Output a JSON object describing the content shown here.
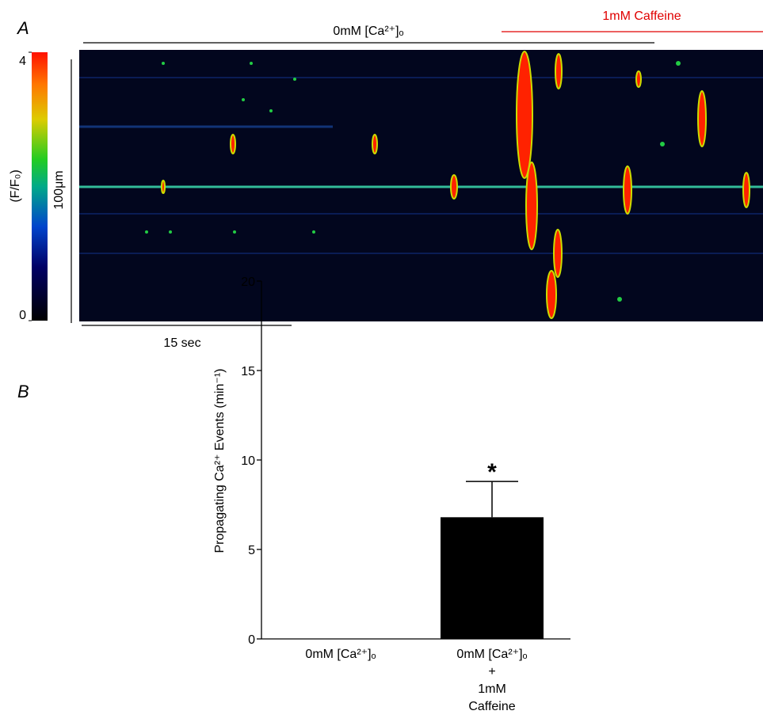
{
  "panel_a": {
    "label": "A",
    "condition": "0mM [Ca²⁺]ₒ",
    "treatment": "1mM Caffeine",
    "colorbar": {
      "label": "(F/F₀)",
      "lim": [
        0,
        4
      ],
      "ticks": [
        0,
        4
      ]
    },
    "space_bar": "100μm",
    "time_bar": "15 sec"
  },
  "chart_data": {
    "type": "bar",
    "panel_label": "B",
    "y_label": "Propagating Ca²⁺ Events (min⁻¹)",
    "categories": [
      "0mM [Ca²⁺]ₒ",
      "0mM [Ca²⁺]ₒ\n+\n1mM\nCaffeine"
    ],
    "values": [
      0,
      6.8
    ],
    "errors": [
      0,
      2.0
    ],
    "color": "#000000",
    "annotation": "*",
    "ylim": [
      0,
      20
    ],
    "yticks": [
      0,
      5,
      10,
      15,
      20
    ]
  }
}
